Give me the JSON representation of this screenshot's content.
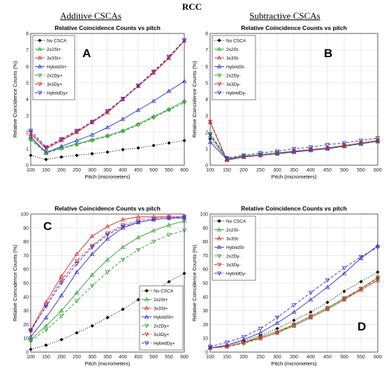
{
  "figure": {
    "title": "RCC",
    "left_column_title": "Additive CSCAs",
    "right_column_title": "Subtractive CSCAs"
  },
  "chart_data": [
    {
      "type": "line",
      "panel_letter": "A",
      "title": "Relative Coincidence Counts vs pitch",
      "xlabel": "Pitch (micrometers)",
      "ylabel": "Relative Coincidence Counts (%)",
      "x": [
        100,
        150,
        200,
        250,
        300,
        350,
        400,
        450,
        500,
        550,
        600
      ],
      "xlim": [
        100,
        600
      ],
      "ylim": [
        0,
        8
      ],
      "xticks": [
        100,
        150,
        200,
        250,
        300,
        350,
        400,
        450,
        500,
        550,
        600
      ],
      "yticks": [
        0,
        1,
        2,
        3,
        4,
        5,
        6,
        7,
        8
      ],
      "grid": true,
      "legend_position": "top-left",
      "series": [
        {
          "name": "No CSCA",
          "color": "#000000",
          "marker": "diamond",
          "dash": "dot",
          "values": [
            0.6,
            0.35,
            0.5,
            0.6,
            0.7,
            0.8,
            0.95,
            1.05,
            1.2,
            1.35,
            1.5
          ]
        },
        {
          "name": "2x2St+",
          "color": "#2ca02c",
          "marker": "triangle-up",
          "dash": "solid",
          "values": [
            1.6,
            0.8,
            1.05,
            1.3,
            1.55,
            1.8,
            2.1,
            2.5,
            2.95,
            3.4,
            3.9
          ]
        },
        {
          "name": "3x3St+",
          "color": "#d62728",
          "marker": "triangle-up",
          "dash": "solid",
          "values": [
            1.9,
            1.0,
            1.5,
            2.0,
            2.6,
            3.2,
            4.0,
            4.8,
            5.6,
            6.5,
            7.55
          ]
        },
        {
          "name": "HybridSt+",
          "color": "#2a2adf",
          "marker": "triangle-up",
          "dash": "solid",
          "values": [
            1.75,
            0.75,
            1.15,
            1.5,
            1.85,
            2.3,
            2.8,
            3.35,
            3.9,
            4.5,
            5.1
          ]
        },
        {
          "name": "2x2Dy+",
          "color": "#2ca02c",
          "marker": "triangle-down",
          "dash": "dash",
          "values": [
            1.55,
            0.75,
            1.0,
            1.25,
            1.5,
            1.75,
            2.05,
            2.45,
            2.9,
            3.35,
            3.8
          ]
        },
        {
          "name": "3x3Dy+",
          "color": "#d62728",
          "marker": "triangle-down",
          "dash": "dash",
          "values": [
            2.0,
            1.05,
            1.55,
            2.05,
            2.6,
            3.25,
            4.0,
            4.8,
            5.65,
            6.55,
            7.6
          ]
        },
        {
          "name": "HybridDy+",
          "color": "#2a2adf",
          "marker": "triangle-down",
          "dash": "dash",
          "values": [
            2.1,
            1.1,
            1.6,
            2.1,
            2.65,
            3.3,
            4.05,
            4.85,
            5.7,
            6.6,
            7.6
          ]
        }
      ]
    },
    {
      "type": "line",
      "panel_letter": "B",
      "title": "Relative Coincidence Counts vs pitch",
      "xlabel": "Pitch (micrometers)",
      "ylabel": "Relative Coincidence Counts (%)",
      "x": [
        100,
        150,
        200,
        250,
        300,
        350,
        400,
        450,
        500,
        550,
        600
      ],
      "xlim": [
        100,
        600
      ],
      "ylim": [
        0,
        8
      ],
      "xticks": [
        100,
        150,
        200,
        250,
        300,
        350,
        400,
        450,
        500,
        550,
        600
      ],
      "yticks": [
        0,
        1,
        2,
        3,
        4,
        5,
        6,
        7,
        8
      ],
      "grid": true,
      "legend_position": "top-left",
      "series": [
        {
          "name": "No CSCA",
          "color": "#000000",
          "marker": "diamond",
          "dash": "dot",
          "values": [
            1.6,
            0.35,
            0.55,
            0.65,
            0.75,
            0.85,
            0.95,
            1.05,
            1.15,
            1.3,
            1.45
          ]
        },
        {
          "name": "2x2St-",
          "color": "#2ca02c",
          "marker": "triangle-up",
          "dash": "solid",
          "values": [
            1.8,
            0.4,
            0.55,
            0.65,
            0.75,
            0.85,
            0.95,
            1.05,
            1.15,
            1.3,
            1.45
          ]
        },
        {
          "name": "3x3St-",
          "color": "#d62728",
          "marker": "triangle-up",
          "dash": "solid",
          "values": [
            2.6,
            0.3,
            0.5,
            0.6,
            0.7,
            0.8,
            0.95,
            1.05,
            1.2,
            1.35,
            1.5
          ]
        },
        {
          "name": "HybridSt-",
          "color": "#2a2adf",
          "marker": "triangle-up",
          "dash": "solid",
          "values": [
            1.4,
            0.35,
            0.5,
            0.6,
            0.7,
            0.8,
            0.9,
            1.0,
            1.15,
            1.3,
            1.45
          ]
        },
        {
          "name": "2x2Dy-",
          "color": "#2ca02c",
          "marker": "triangle-down",
          "dash": "dash",
          "values": [
            1.85,
            0.4,
            0.55,
            0.65,
            0.75,
            0.85,
            0.95,
            1.05,
            1.15,
            1.3,
            1.45
          ]
        },
        {
          "name": "3x3Dy-",
          "color": "#d62728",
          "marker": "triangle-down",
          "dash": "dash",
          "values": [
            2.65,
            0.35,
            0.5,
            0.6,
            0.7,
            0.85,
            0.95,
            1.05,
            1.2,
            1.35,
            1.5
          ]
        },
        {
          "name": "HybridDy-",
          "color": "#2a2adf",
          "marker": "triangle-down",
          "dash": "dash",
          "values": [
            1.9,
            0.45,
            0.6,
            0.75,
            0.85,
            1.0,
            1.1,
            1.25,
            1.35,
            1.5,
            1.65
          ]
        }
      ]
    },
    {
      "type": "line",
      "panel_letter": "C",
      "title": "Relative Coincidence Counts vs pitch",
      "xlabel": "Pitch (micrometers)",
      "ylabel": "Relative Coincidence Counts (%)",
      "x": [
        100,
        150,
        200,
        250,
        300,
        350,
        400,
        450,
        500,
        550,
        600
      ],
      "xlim": [
        100,
        600
      ],
      "ylim": [
        0,
        100
      ],
      "xticks": [
        100,
        150,
        200,
        250,
        300,
        350,
        400,
        450,
        500,
        550,
        600
      ],
      "yticks": [
        0,
        10,
        20,
        30,
        40,
        50,
        60,
        70,
        80,
        90,
        100
      ],
      "grid": true,
      "legend_position": "bottom-right",
      "series": [
        {
          "name": "No CSCA",
          "color": "#000000",
          "marker": "diamond",
          "dash": "dot",
          "values": [
            2,
            5,
            9,
            14,
            19,
            25,
            31,
            38,
            44,
            51,
            57
          ]
        },
        {
          "name": "2x2St+",
          "color": "#2ca02c",
          "marker": "triangle-up",
          "dash": "solid",
          "values": [
            9,
            19,
            30,
            43,
            56,
            67,
            76,
            83,
            88,
            92,
            95
          ]
        },
        {
          "name": "3x3St+",
          "color": "#d62728",
          "marker": "triangle-up",
          "dash": "solid",
          "values": [
            16,
            36,
            55,
            71,
            84,
            91,
            96,
            98,
            98,
            98,
            98
          ]
        },
        {
          "name": "HybridSt+",
          "color": "#2a2adf",
          "marker": "triangle-up",
          "dash": "solid",
          "values": [
            11,
            25,
            41,
            58,
            71,
            82,
            90,
            94,
            96,
            97,
            97
          ]
        },
        {
          "name": "2x2Dy+",
          "color": "#2ca02c",
          "marker": "triangle-down",
          "dash": "dash",
          "values": [
            8,
            16,
            26,
            37,
            48,
            58,
            67,
            74,
            80,
            85,
            88
          ]
        },
        {
          "name": "3x3Dy+",
          "color": "#d62728",
          "marker": "triangle-down",
          "dash": "dash",
          "values": [
            15,
            34,
            52,
            66,
            77,
            86,
            92,
            95,
            97,
            98,
            98
          ]
        },
        {
          "name": "HybridDy+",
          "color": "#2a2adf",
          "marker": "triangle-down",
          "dash": "dash",
          "values": [
            16,
            33,
            50,
            64,
            76,
            85,
            91,
            94,
            96,
            97,
            98
          ]
        }
      ]
    },
    {
      "type": "line",
      "panel_letter": "D",
      "title": "Relative Coincidence Counts vs pitch",
      "xlabel": "Pitch (micrometers)",
      "ylabel": "Relative Coincidence Counts (%)",
      "x": [
        100,
        150,
        200,
        250,
        300,
        350,
        400,
        450,
        500,
        550,
        600
      ],
      "xlim": [
        100,
        600
      ],
      "ylim": [
        0,
        100
      ],
      "xticks": [
        100,
        150,
        200,
        250,
        300,
        350,
        400,
        450,
        500,
        550,
        600
      ],
      "yticks": [
        0,
        10,
        20,
        30,
        40,
        50,
        60,
        70,
        80,
        90,
        100
      ],
      "grid": true,
      "legend_position": "top-left",
      "series": [
        {
          "name": "No CSCA",
          "color": "#000000",
          "marker": "diamond",
          "dash": "dot",
          "values": [
            3,
            5,
            8,
            12,
            17,
            23,
            29,
            36,
            44,
            51,
            58
          ]
        },
        {
          "name": "2x2St-",
          "color": "#2ca02c",
          "marker": "triangle-up",
          "dash": "solid",
          "values": [
            3,
            4,
            7,
            11,
            15,
            20,
            26,
            32,
            39,
            46,
            54
          ]
        },
        {
          "name": "3x3St-",
          "color": "#d62728",
          "marker": "triangle-up",
          "dash": "solid",
          "values": [
            3,
            4,
            7,
            10,
            14,
            19,
            25,
            31,
            38,
            45,
            52
          ]
        },
        {
          "name": "HybridSt-",
          "color": "#2a2adf",
          "marker": "triangle-up",
          "dash": "solid",
          "values": [
            3,
            5,
            9,
            14,
            21,
            29,
            38,
            47,
            57,
            68,
            77
          ]
        },
        {
          "name": "2x2Dy-",
          "color": "#2ca02c",
          "marker": "triangle-down",
          "dash": "dash",
          "values": [
            3,
            4,
            6,
            10,
            14,
            19,
            25,
            31,
            38,
            46,
            54
          ]
        },
        {
          "name": "3x3Dy-",
          "color": "#d62728",
          "marker": "triangle-down",
          "dash": "dash",
          "values": [
            3,
            4,
            7,
            10,
            14,
            20,
            26,
            32,
            39,
            46,
            53
          ]
        },
        {
          "name": "HybridDy-",
          "color": "#2a2adf",
          "marker": "triangle-down",
          "dash": "dash",
          "values": [
            4,
            7,
            11,
            17,
            25,
            34,
            43,
            52,
            61,
            69,
            76
          ]
        }
      ]
    }
  ]
}
